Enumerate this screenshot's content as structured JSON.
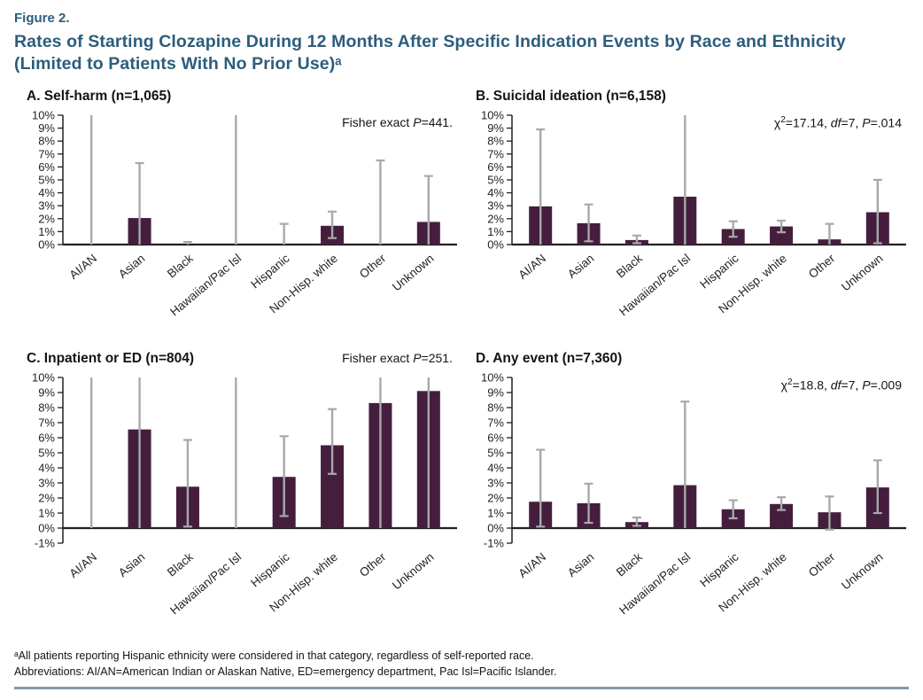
{
  "figure": {
    "label": "Figure 2.",
    "title_line1": "Rates of Starting Clozapine During 12 Months After Specific Indication Events by Race and Ethnicity",
    "title_line2": "(Limited to Patients With No Prior Use)ᵃ"
  },
  "colors": {
    "accent": "#2d5d7b",
    "bar": "#451e3e",
    "error_bar": "#a7a9ac",
    "axis": "#231f20",
    "rule": "#7e9bae"
  },
  "chart_data": [
    {
      "id": "A",
      "type": "bar",
      "title": "A. Self-harm (n=1,065)",
      "annotation_text": "Fisher exact P=441.",
      "annotation_segments": [
        {
          "t": "Fisher exact "
        },
        {
          "t": "P",
          "i": true
        },
        {
          "t": "=441."
        }
      ],
      "ylabel": "",
      "xlabel": "",
      "ylim": [
        0,
        10
      ],
      "yticks": [
        "10%",
        "9%",
        "8%",
        "7%",
        "6%",
        "5%",
        "4%",
        "3%",
        "2%",
        "1%",
        "0%"
      ],
      "categories": [
        "AI/AN",
        "Asian",
        "Black",
        "Hawaiian/Pac Isl",
        "Hispanic",
        "Non-Hisp. white",
        "Other",
        "Unknown"
      ],
      "values": [
        0,
        2.05,
        0,
        0,
        0,
        1.45,
        0,
        1.75
      ],
      "ci_low": [
        null,
        null,
        null,
        null,
        null,
        0.5,
        null,
        null
      ],
      "ci_high": [
        11,
        6.3,
        0.2,
        11,
        1.6,
        2.55,
        6.5,
        5.3
      ]
    },
    {
      "id": "B",
      "type": "bar",
      "title": "B. Suicidal ideation (n=6,158)",
      "annotation_text": "χ²=17.14, df=7, P=.014",
      "annotation_segments": [
        {
          "t": "χ"
        },
        {
          "t": "2",
          "sup": true
        },
        {
          "t": "=17.14, "
        },
        {
          "t": "df",
          "i": true
        },
        {
          "t": "=7, "
        },
        {
          "t": "P",
          "i": true
        },
        {
          "t": "=.014"
        }
      ],
      "ylabel": "",
      "xlabel": "",
      "ylim": [
        0,
        10
      ],
      "yticks": [
        "10%",
        "9%",
        "8%",
        "7%",
        "6%",
        "5%",
        "4%",
        "3%",
        "2%",
        "1%",
        "0%"
      ],
      "categories": [
        "AI/AN",
        "Asian",
        "Black",
        "Hawaiian/Pac Isl",
        "Hispanic",
        "Non-Hisp. white",
        "Other",
        "Unknown"
      ],
      "values": [
        2.95,
        1.65,
        0.35,
        3.7,
        1.2,
        1.4,
        0.4,
        2.5
      ],
      "ci_low": [
        null,
        0.25,
        0.1,
        null,
        0.6,
        0.95,
        null,
        0.1
      ],
      "ci_high": [
        8.9,
        3.1,
        0.7,
        11,
        1.8,
        1.85,
        1.6,
        5.0
      ]
    },
    {
      "id": "C",
      "type": "bar",
      "title": "C. Inpatient or ED (n=804)",
      "annotation_text": "Fisher exact P=251.",
      "annotation_segments": [
        {
          "t": "Fisher exact "
        },
        {
          "t": "P",
          "i": true
        },
        {
          "t": "=251."
        }
      ],
      "ylabel": "",
      "xlabel": "",
      "ylim": [
        -1,
        10
      ],
      "yticks": [
        "10%",
        "9%",
        "8%",
        "7%",
        "6%",
        "5%",
        "4%",
        "3%",
        "2%",
        "1%",
        "0%",
        "-1%"
      ],
      "categories": [
        "AI/AN",
        "Asian",
        "Black",
        "Hawaiian/Pac Isl",
        "Hispanic",
        "Non-Hisp. white",
        "Other",
        "Unknown"
      ],
      "values": [
        0,
        6.55,
        2.75,
        0,
        3.4,
        5.5,
        8.3,
        9.1
      ],
      "ci_low": [
        null,
        null,
        0.1,
        null,
        0.8,
        3.6,
        null,
        null
      ],
      "ci_high": [
        11,
        11,
        5.85,
        11,
        6.1,
        7.9,
        11,
        11
      ]
    },
    {
      "id": "D",
      "type": "bar",
      "title": "D. Any event (n=7,360)",
      "annotation_text": "χ²=18.8, df=7, P=.009",
      "annotation_segments": [
        {
          "t": "χ"
        },
        {
          "t": "2",
          "sup": true
        },
        {
          "t": "=18.8, "
        },
        {
          "t": "df",
          "i": true
        },
        {
          "t": "=7, "
        },
        {
          "t": "P",
          "i": true
        },
        {
          "t": "=.009"
        }
      ],
      "ylabel": "",
      "xlabel": "",
      "ylim": [
        -1,
        10
      ],
      "yticks": [
        "10%",
        "9%",
        "8%",
        "7%",
        "6%",
        "5%",
        "4%",
        "3%",
        "2%",
        "1%",
        "0%",
        "-1%"
      ],
      "categories": [
        "AI/AN",
        "Asian",
        "Black",
        "Hawaiian/Pac Isl",
        "Hispanic",
        "Non-Hisp. white",
        "Other",
        "Unknown"
      ],
      "values": [
        1.75,
        1.65,
        0.4,
        2.85,
        1.25,
        1.6,
        1.05,
        2.7
      ],
      "ci_low": [
        0.1,
        0.35,
        0.15,
        null,
        0.65,
        1.2,
        -0.1,
        1.0
      ],
      "ci_high": [
        5.2,
        2.95,
        0.7,
        8.4,
        1.85,
        2.05,
        2.1,
        4.5
      ]
    }
  ],
  "footer": {
    "note": "ᵃAll patients reporting Hispanic ethnicity were considered in that category, regardless of self-reported race.",
    "abbreviations": "Abbreviations: AI/AN=American Indian or Alaskan Native, ED=emergency department, Pac Isl=Pacific Islander."
  }
}
